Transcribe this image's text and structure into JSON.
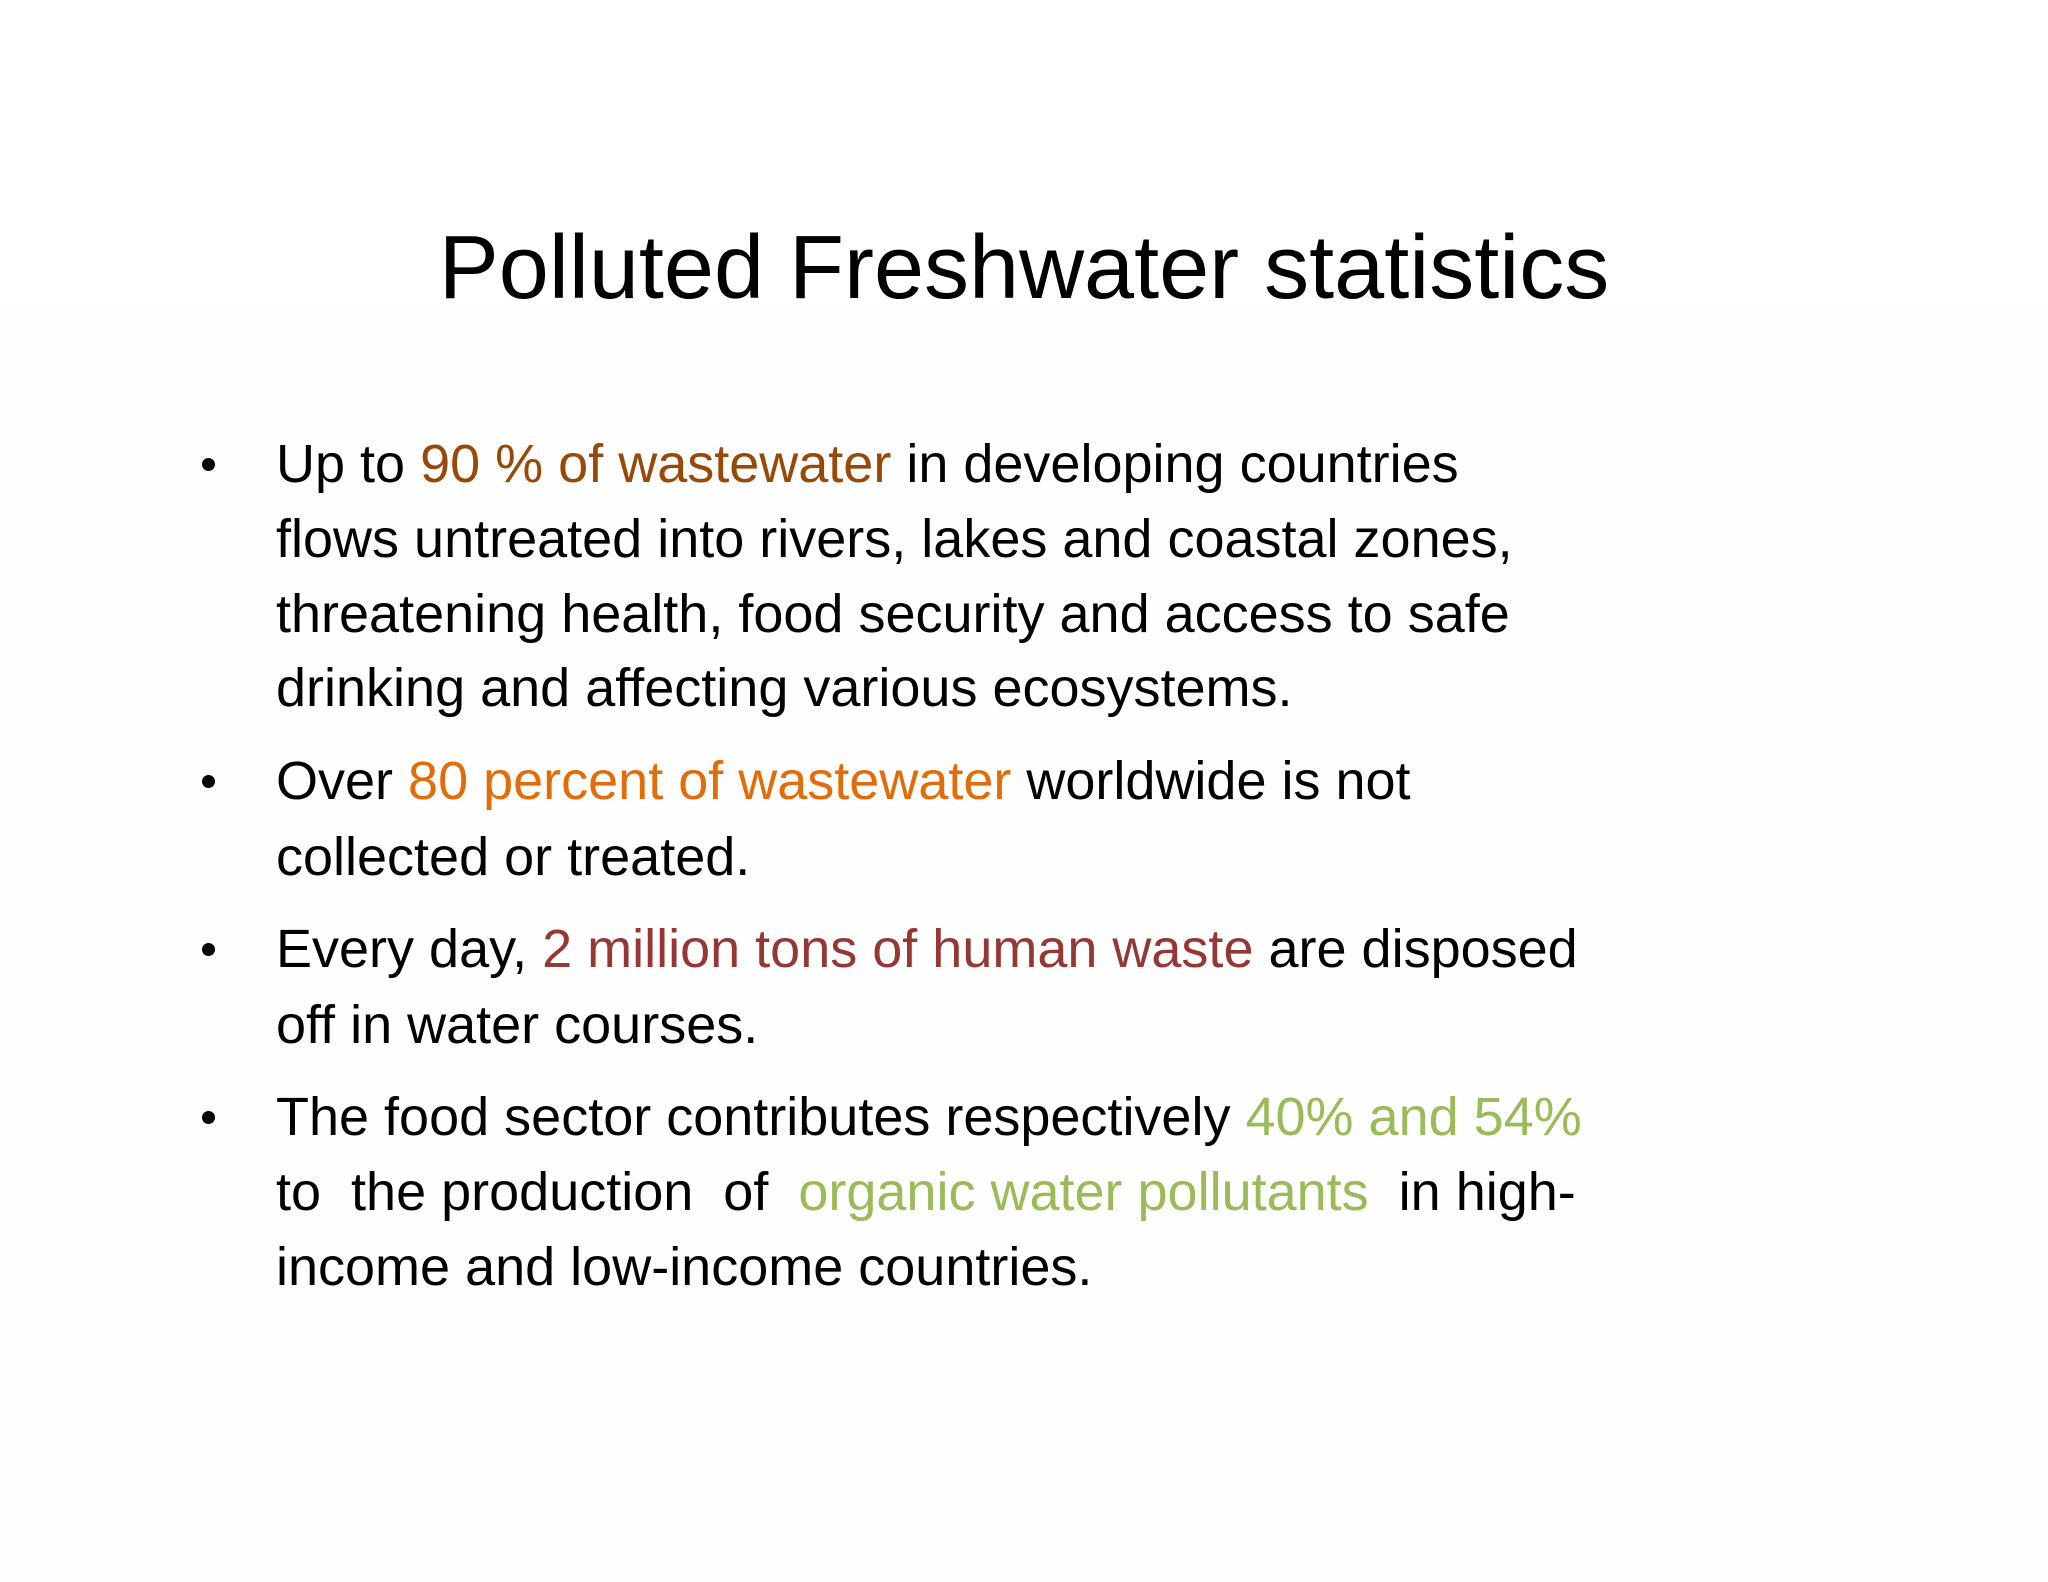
{
  "title": "Polluted Freshwater statistics",
  "bullets": [
    {
      "lines": [
        [
          {
            "text": "Up to "
          },
          {
            "text": "90 % of wastewater",
            "color": "#984807"
          },
          {
            "text": " in developing countries"
          }
        ],
        [
          {
            "text": "flows untreated into rivers, lakes and coastal zones,"
          }
        ],
        [
          {
            "text": "threatening health, food security and access to safe"
          }
        ],
        [
          {
            "text": "drinking and affecting various ecosystems."
          }
        ]
      ]
    },
    {
      "lines": [
        [
          {
            "text": "Over "
          },
          {
            "text": "80 percent of wastewater",
            "color": "#e36c09"
          },
          {
            "text": " worldwide is not"
          }
        ],
        [
          {
            "text": "collected or treated."
          }
        ]
      ]
    },
    {
      "lines": [
        [
          {
            "text": "Every day, "
          },
          {
            "text": "2 million tons of human waste",
            "color": "#953735"
          },
          {
            "text": " are disposed"
          }
        ],
        [
          {
            "text": "off in water courses."
          }
        ]
      ]
    },
    {
      "lines": [
        [
          {
            "text": "The food sector contributes respectively "
          },
          {
            "text": "40% and 54%",
            "color": "#9bbb59"
          }
        ],
        [
          {
            "text": "to  the production  of  "
          },
          {
            "text": "organic water pollutants",
            "color": "#9bbb59"
          },
          {
            "text": "  in high-"
          }
        ],
        [
          {
            "text": "income and low-income countries."
          }
        ]
      ]
    }
  ]
}
